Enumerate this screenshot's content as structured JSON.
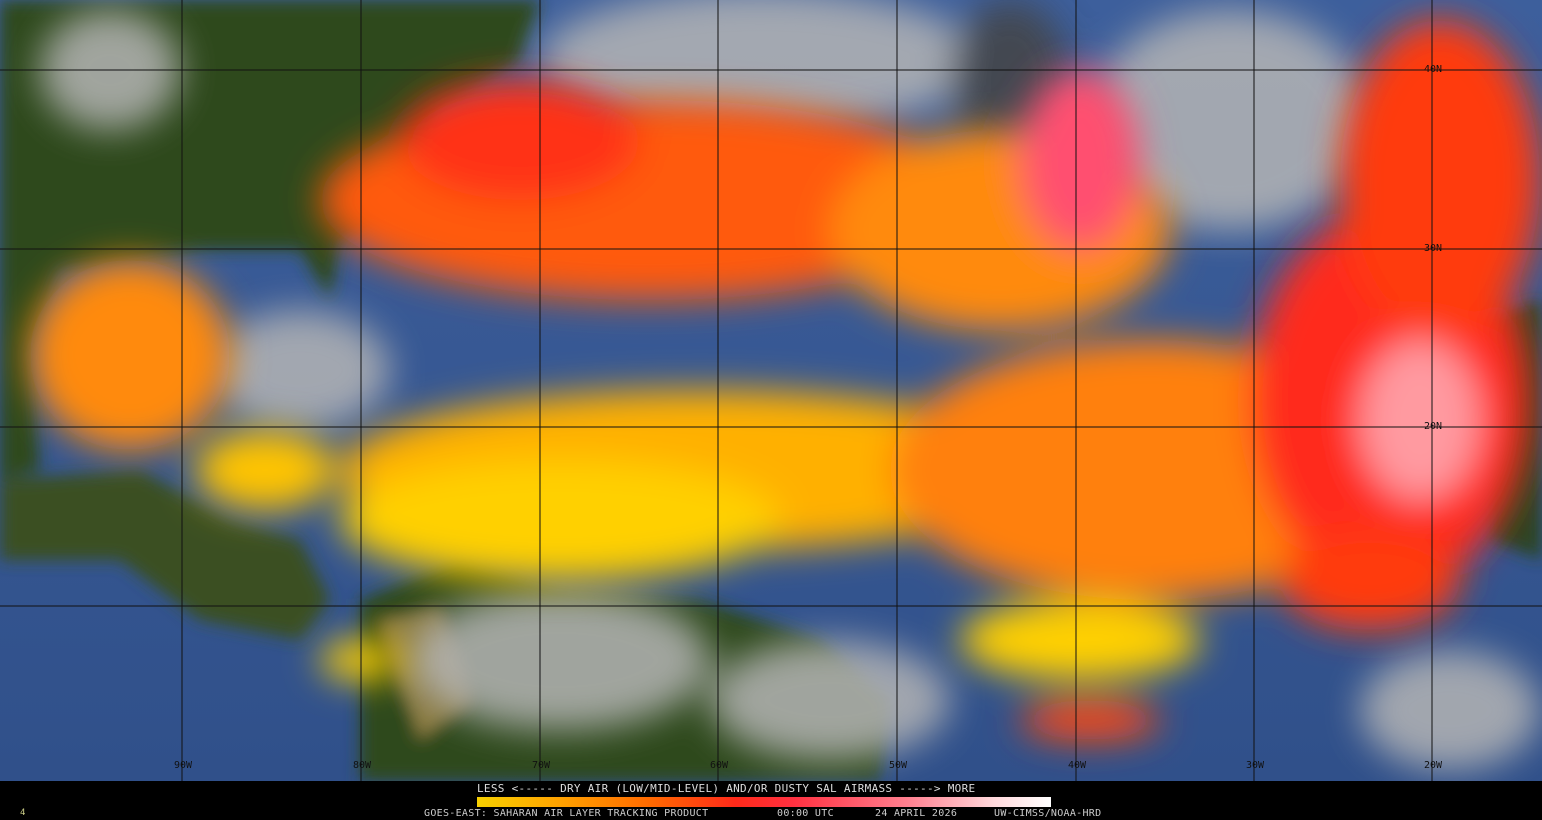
{
  "product": {
    "legend_title": "LESS <----- DRY AIR (LOW/MID-LEVEL) AND/OR DUSTY SAL AIRMASS -----> MORE",
    "legend_less": "LESS",
    "legend_more": "MORE",
    "legend_colors": [
      "#f7d000",
      "#ffa000",
      "#ff6a00",
      "#ff2a1a",
      "#ff8090",
      "#ffffff"
    ],
    "satellite_product": "GOES-EAST: SAHARAN AIR LAYER TRACKING PRODUCT",
    "time": "00:00 UTC",
    "date": "24 APRIL 2026",
    "credit": "UW-CIMSS/NOAA-HRD",
    "frame_number": "4"
  },
  "grid": {
    "longitudes": [
      "90W",
      "80W",
      "70W",
      "60W",
      "50W",
      "40W",
      "30W",
      "20W"
    ],
    "latitudes": [
      "40N",
      "30N",
      "20N"
    ]
  },
  "colors": {
    "ocean": "#3a5a9a",
    "land": "#2e4a1c",
    "cloud": "#9a9a9a",
    "dry_air": "#ff6a00",
    "very_dry": "#ff2a1a",
    "dusty": "#ffc0c8"
  }
}
